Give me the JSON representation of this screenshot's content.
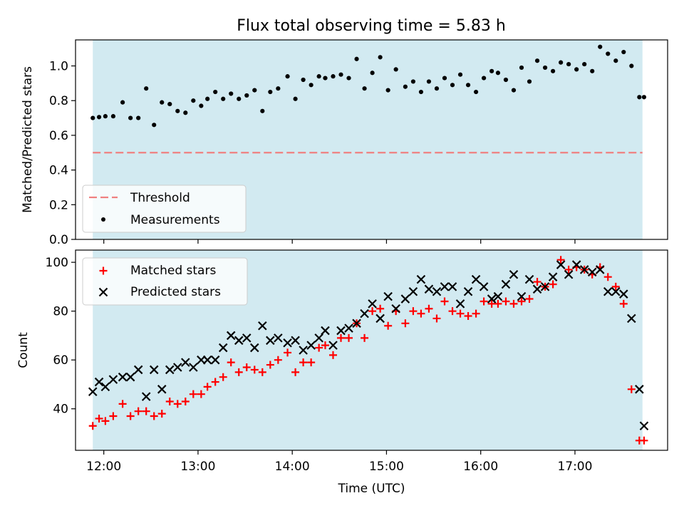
{
  "title": "Flux total observing time = 5.83 h",
  "colors": {
    "span": "#add8e6",
    "threshold": "#f08080",
    "measurement": "#000000",
    "matched": "#ff0000",
    "predicted": "#000000"
  },
  "chart_data": [
    {
      "type": "scatter",
      "panel": "top",
      "ylabel": "Matched/Predicted stars",
      "xlabel": "",
      "xlim": [
        "11:42",
        "17:59"
      ],
      "ylim": [
        0,
        1.15
      ],
      "yticks": [
        0.0,
        0.2,
        0.4,
        0.6,
        0.8,
        1.0
      ],
      "ytick_labels": [
        "0.0",
        "0.2",
        "0.4",
        "0.6",
        "0.8",
        "1.0"
      ],
      "xtick_labels_visible": false,
      "span": [
        "11:53",
        "17:43"
      ],
      "legend": {
        "location": "lower-left",
        "entries": [
          {
            "label": "Threshold",
            "kind": "dashed-line",
            "series": "threshold"
          },
          {
            "label": "Measurements",
            "kind": "dot",
            "series": "measurements"
          }
        ]
      },
      "threshold": {
        "name": "Threshold",
        "y": 0.5,
        "x": [
          "11:53",
          "17:43"
        ]
      },
      "series": [
        {
          "name": "Measurements",
          "x": [
            "11:53",
            "11:57",
            "12:01",
            "12:06",
            "12:12",
            "12:17",
            "12:22",
            "12:27",
            "12:32",
            "12:37",
            "12:42",
            "12:47",
            "12:52",
            "12:57",
            "13:02",
            "13:06",
            "13:11",
            "13:16",
            "13:21",
            "13:26",
            "13:31",
            "13:36",
            "13:41",
            "13:46",
            "13:51",
            "13:57",
            "14:02",
            "14:07",
            "14:12",
            "14:17",
            "14:21",
            "14:26",
            "14:31",
            "14:36",
            "14:41",
            "14:46",
            "14:51",
            "14:56",
            "15:01",
            "15:06",
            "15:12",
            "15:17",
            "15:22",
            "15:27",
            "15:32",
            "15:37",
            "15:42",
            "15:47",
            "15:52",
            "15:57",
            "16:02",
            "16:07",
            "16:11",
            "16:16",
            "16:21",
            "16:26",
            "16:31",
            "16:36",
            "16:41",
            "16:46",
            "16:51",
            "16:56",
            "17:01",
            "17:06",
            "17:11",
            "17:16",
            "17:21",
            "17:26",
            "17:31",
            "17:36",
            "17:41",
            "17:44"
          ],
          "y": [
            0.7,
            0.705,
            0.71,
            0.71,
            0.79,
            0.7,
            0.7,
            0.87,
            0.66,
            0.79,
            0.78,
            0.74,
            0.73,
            0.8,
            0.77,
            0.81,
            0.85,
            0.81,
            0.84,
            0.81,
            0.83,
            0.86,
            0.74,
            0.85,
            0.87,
            0.94,
            0.81,
            0.92,
            0.89,
            0.94,
            0.93,
            0.94,
            0.95,
            0.93,
            1.04,
            0.87,
            0.96,
            1.05,
            0.86,
            0.98,
            0.88,
            0.91,
            0.85,
            0.91,
            0.87,
            0.93,
            0.89,
            0.95,
            0.89,
            0.85,
            0.93,
            0.97,
            0.96,
            0.92,
            0.86,
            0.99,
            0.91,
            1.03,
            0.99,
            0.97,
            1.02,
            1.01,
            0.98,
            1.01,
            0.97,
            1.11,
            1.07,
            1.03,
            1.08,
            1.0,
            0.82,
            0.82
          ]
        }
      ]
    },
    {
      "type": "scatter",
      "panel": "bottom",
      "xlabel": "Time (UTC)",
      "ylabel": "Count",
      "xlim": [
        "11:42",
        "17:59"
      ],
      "ylim": [
        23,
        105
      ],
      "xticks": [
        "12:00",
        "13:00",
        "14:00",
        "15:00",
        "16:00",
        "17:00"
      ],
      "yticks": [
        40,
        60,
        80,
        100
      ],
      "ytick_labels": [
        "40",
        "60",
        "80",
        "100"
      ],
      "span": [
        "11:53",
        "17:43"
      ],
      "legend": {
        "location": "upper-left",
        "entries": [
          {
            "label": "Matched stars",
            "kind": "plus",
            "series": "matched"
          },
          {
            "label": "Predicted stars",
            "kind": "cross",
            "series": "predicted"
          }
        ]
      },
      "series": [
        {
          "name": "Matched stars",
          "x": [
            "11:53",
            "11:57",
            "12:01",
            "12:06",
            "12:12",
            "12:17",
            "12:22",
            "12:27",
            "12:32",
            "12:37",
            "12:42",
            "12:47",
            "12:52",
            "12:57",
            "13:02",
            "13:06",
            "13:11",
            "13:16",
            "13:21",
            "13:26",
            "13:31",
            "13:36",
            "13:41",
            "13:46",
            "13:51",
            "13:57",
            "14:02",
            "14:07",
            "14:12",
            "14:17",
            "14:21",
            "14:26",
            "14:31",
            "14:36",
            "14:41",
            "14:46",
            "14:51",
            "14:56",
            "15:01",
            "15:06",
            "15:12",
            "15:17",
            "15:22",
            "15:27",
            "15:32",
            "15:37",
            "15:42",
            "15:47",
            "15:52",
            "15:57",
            "16:02",
            "16:07",
            "16:11",
            "16:16",
            "16:21",
            "16:26",
            "16:31",
            "16:36",
            "16:41",
            "16:46",
            "16:51",
            "16:56",
            "17:01",
            "17:06",
            "17:11",
            "17:16",
            "17:21",
            "17:26",
            "17:31",
            "17:36",
            "17:41",
            "17:44"
          ],
          "y": [
            33,
            36,
            35,
            37,
            42,
            37,
            39,
            39,
            37,
            38,
            43,
            42,
            43,
            46,
            46,
            49,
            51,
            53,
            59,
            55,
            57,
            56,
            55,
            58,
            60,
            63,
            55,
            59,
            59,
            65,
            66,
            62,
            69,
            69,
            75,
            69,
            80,
            81,
            74,
            80,
            75,
            80,
            79,
            81,
            77,
            84,
            80,
            79,
            78,
            79,
            84,
            83,
            83,
            84,
            83,
            84,
            85,
            92,
            90,
            91,
            101,
            97,
            98,
            97,
            95,
            98,
            94,
            90,
            83,
            48,
            27,
            27
          ]
        },
        {
          "name": "Predicted stars",
          "x": [
            "11:53",
            "11:57",
            "12:01",
            "12:06",
            "12:12",
            "12:17",
            "12:22",
            "12:27",
            "12:32",
            "12:37",
            "12:42",
            "12:47",
            "12:52",
            "12:57",
            "13:02",
            "13:06",
            "13:11",
            "13:16",
            "13:21",
            "13:26",
            "13:31",
            "13:36",
            "13:41",
            "13:46",
            "13:51",
            "13:57",
            "14:02",
            "14:07",
            "14:12",
            "14:17",
            "14:21",
            "14:26",
            "14:31",
            "14:36",
            "14:41",
            "14:46",
            "14:51",
            "14:56",
            "15:01",
            "15:06",
            "15:12",
            "15:17",
            "15:22",
            "15:27",
            "15:32",
            "15:37",
            "15:42",
            "15:47",
            "15:52",
            "15:57",
            "16:02",
            "16:07",
            "16:11",
            "16:16",
            "16:21",
            "16:26",
            "16:31",
            "16:36",
            "16:41",
            "16:46",
            "16:51",
            "16:56",
            "17:01",
            "17:06",
            "17:11",
            "17:16",
            "17:21",
            "17:26",
            "17:31",
            "17:36",
            "17:41",
            "17:44"
          ],
          "y": [
            47,
            51,
            49,
            52,
            53,
            53,
            56,
            45,
            56,
            48,
            56,
            57,
            59,
            57,
            60,
            60,
            60,
            65,
            70,
            68,
            69,
            65,
            74,
            68,
            69,
            67,
            68,
            64,
            66,
            69,
            72,
            66,
            72,
            73,
            75,
            79,
            83,
            77,
            86,
            81,
            85,
            88,
            93,
            89,
            88,
            90,
            90,
            83,
            88,
            93,
            90,
            85,
            86,
            91,
            95,
            86,
            93,
            89,
            90,
            94,
            99,
            95,
            99,
            97,
            96,
            97,
            88,
            88,
            87,
            77,
            48,
            33
          ]
        }
      ]
    }
  ]
}
